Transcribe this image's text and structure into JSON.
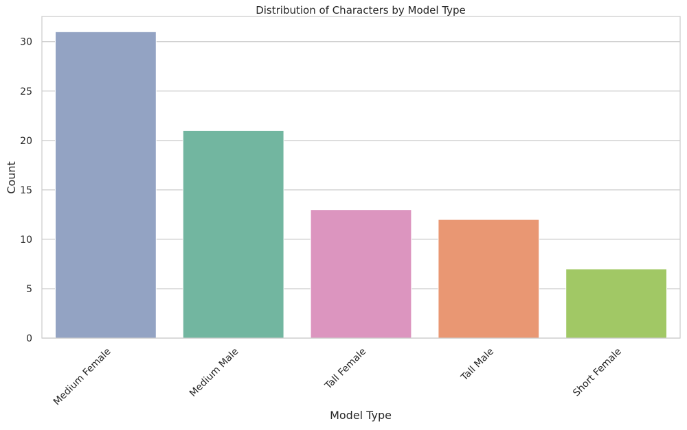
{
  "chart_data": {
    "type": "bar",
    "title": "Distribution of Characters by Model Type",
    "xlabel": "Model Type",
    "ylabel": "Count",
    "categories": [
      "Medium Female",
      "Medium Male",
      "Tall Female",
      "Tall Male",
      "Short Female"
    ],
    "values": [
      31,
      21,
      13,
      12,
      7
    ],
    "colors": [
      "#93a3c3",
      "#72b6a0",
      "#dc95bf",
      "#e99773",
      "#a1c865"
    ],
    "ylim": [
      0,
      32.55
    ],
    "yticks": [
      0,
      5,
      10,
      15,
      20,
      25,
      30
    ],
    "grid": "horizontal",
    "xtick_rotation": 45
  }
}
